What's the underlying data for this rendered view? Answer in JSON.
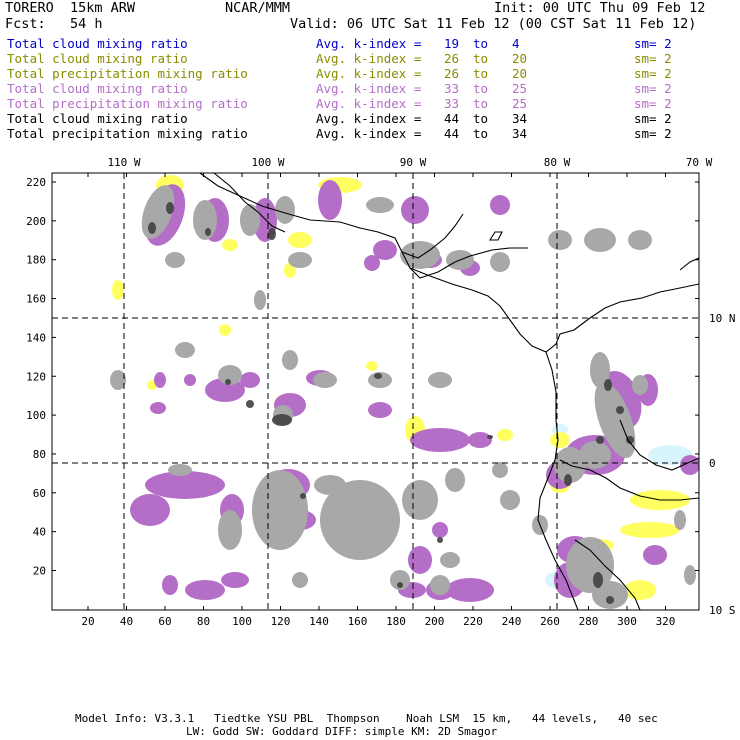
{
  "header": {
    "model": "TORERO  15km ARW",
    "org": "NCAR/MMM",
    "init": "Init: 00 UTC Thu 09 Feb 12",
    "fcst": "Fcst:   54 h",
    "valid": "Valid: 06 UTC Sat 11 Feb 12 (00 CST Sat 11 Feb 12)"
  },
  "legend": [
    {
      "label": "Total cloud mixing ratio",
      "kidx": "Avg. k-index =",
      "a": "19",
      "to": "to",
      "b": "4",
      "sm": "sm= 2",
      "color": "#0000c8"
    },
    {
      "label": "Total cloud mixing ratio",
      "kidx": "Avg. k-index =",
      "a": "26",
      "to": "to",
      "b": "20",
      "sm": "sm= 2",
      "color": "#8c8c00"
    },
    {
      "label": "Total precipitation mixing ratio",
      "kidx": "Avg. k-index =",
      "a": "26",
      "to": "to",
      "b": "20",
      "sm": "sm= 2",
      "color": "#8c8c00"
    },
    {
      "label": "Total cloud mixing ratio",
      "kidx": "Avg. k-index =",
      "a": "33",
      "to": "to",
      "b": "25",
      "sm": "sm= 2",
      "color": "#b46ec8"
    },
    {
      "label": "Total precipitation mixing ratio",
      "kidx": "Avg. k-index =",
      "a": "33",
      "to": "to",
      "b": "25",
      "sm": "sm= 2",
      "color": "#b46ec8"
    },
    {
      "label": "Total cloud mixing ratio",
      "kidx": "Avg. k-index =",
      "a": "44",
      "to": "to",
      "b": "34",
      "sm": "sm= 2",
      "color": "#000000"
    },
    {
      "label": "Total precipitation mixing ratio",
      "kidx": "Avg. k-index =",
      "a": "44",
      "to": "to",
      "b": "34",
      "sm": "sm= 2",
      "color": "#000000"
    }
  ],
  "axes": {
    "top_lon": [
      "110 W",
      "100 W",
      "90 W",
      "80 W",
      "70 W"
    ],
    "right_lat": [
      "10 N",
      "0",
      "10 S"
    ],
    "left_y": [
      "220",
      "200",
      "180",
      "160",
      "140",
      "120",
      "100",
      "80",
      "60",
      "40",
      "20"
    ],
    "bottom_x": [
      "20",
      "40",
      "60",
      "80",
      "100",
      "120",
      "140",
      "160",
      "180",
      "200",
      "220",
      "240",
      "260",
      "280",
      "300",
      "320"
    ]
  },
  "footer": {
    "line1": "Model Info: V3.3.1   Tiedtke YSU PBL  Thompson    Noah LSM  15 km,   44 levels,   40 sec",
    "line2": "LW: Godd SW: Goddard DIFF: simple KM: 2D Smagor"
  },
  "colors": {
    "yellow": "#ffff60",
    "purple": "#b46ec8",
    "gray": "#a8a8a8",
    "dark": "#404040",
    "cyan": "#d8f4fc"
  }
}
